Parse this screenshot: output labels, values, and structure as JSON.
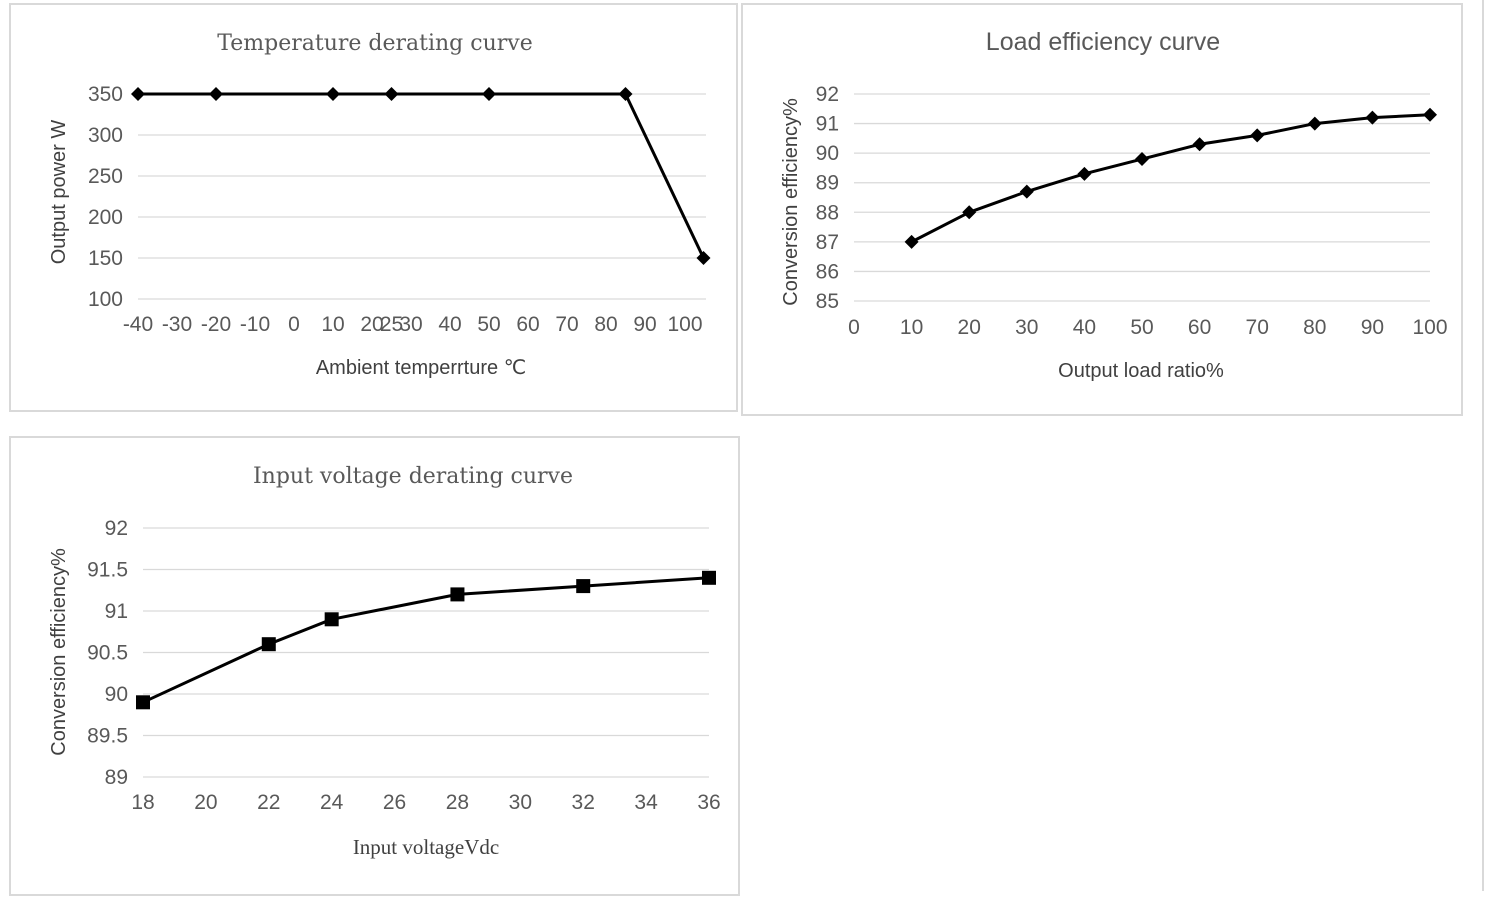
{
  "chart_data": [
    {
      "type": "line",
      "title": "Temperature derating curve",
      "xlabel": "Ambient temperrture ℃",
      "ylabel": "Output power W",
      "x_ticks": [
        "-40",
        "-30",
        "-20",
        "-10",
        "0",
        "10",
        "20",
        "25",
        "30",
        "40",
        "50",
        "60",
        "70",
        "80",
        "90",
        "100"
      ],
      "y_ticks": [
        "100",
        "150",
        "200",
        "250",
        "300",
        "350"
      ],
      "ylim": [
        100,
        350
      ],
      "grid": true,
      "marker": "diamond",
      "series": [
        {
          "x": [
            -40,
            -20,
            10,
            25,
            50,
            85,
            105
          ],
          "y": [
            350,
            350,
            350,
            350,
            350,
            350,
            150
          ]
        }
      ]
    },
    {
      "type": "line",
      "title": "Load efficiency curve",
      "xlabel": "Output load ratio%",
      "ylabel": "Conversion efficiency%",
      "x_ticks": [
        "0",
        "10",
        "20",
        "30",
        "40",
        "50",
        "60",
        "70",
        "80",
        "90",
        "100"
      ],
      "y_ticks": [
        "85",
        "86",
        "87",
        "88",
        "89",
        "90",
        "91",
        "92"
      ],
      "xlim": [
        0,
        100
      ],
      "ylim": [
        85,
        92
      ],
      "grid": true,
      "marker": "diamond",
      "series": [
        {
          "x": [
            10,
            20,
            30,
            40,
            50,
            60,
            70,
            80,
            90,
            100
          ],
          "y": [
            87,
            88,
            88.7,
            89.3,
            89.8,
            90.3,
            90.6,
            91,
            91.2,
            91.3
          ]
        }
      ]
    },
    {
      "type": "line",
      "title": "Input voltage derating curve",
      "xlabel": "Input voltageVdc",
      "ylabel": "Conversion efficiency%",
      "x_ticks": [
        "18",
        "20",
        "22",
        "24",
        "26",
        "28",
        "30",
        "32",
        "34",
        "36"
      ],
      "y_ticks": [
        "89",
        "89.5",
        "90",
        "90.5",
        "91",
        "91.5",
        "92"
      ],
      "xlim": [
        18,
        36
      ],
      "ylim": [
        89,
        92
      ],
      "grid": true,
      "marker": "square",
      "series": [
        {
          "x": [
            18,
            22,
            24,
            28,
            32,
            36
          ],
          "y": [
            89.9,
            90.6,
            90.9,
            91.2,
            91.3,
            91.4
          ]
        }
      ]
    }
  ]
}
